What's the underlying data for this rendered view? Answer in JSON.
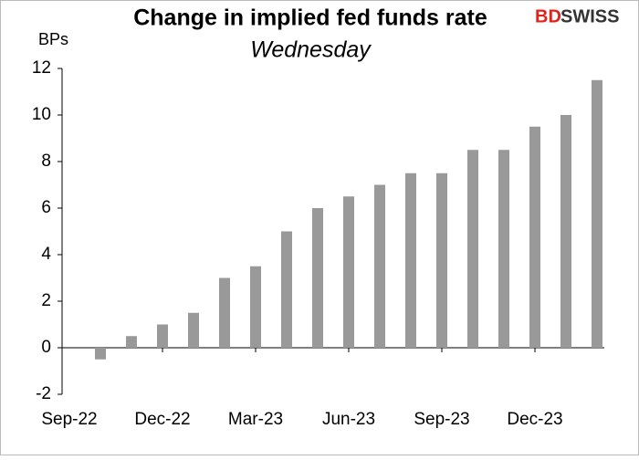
{
  "chart_data": {
    "type": "bar",
    "title": "Change in implied fed funds rate",
    "subtitle": "Wednesday",
    "y_label": "BPs",
    "brand": {
      "part1": "BD",
      "part2": "SWISS"
    },
    "categories": [
      "Sep-22",
      null,
      null,
      "Dec-22",
      null,
      null,
      "Mar-23",
      null,
      null,
      "Jun-23",
      null,
      null,
      "Sep-23",
      null,
      null,
      "Dec-23",
      null,
      null
    ],
    "values": [
      null,
      -0.5,
      0.5,
      1,
      1.5,
      3,
      3.5,
      5,
      6,
      6.5,
      7,
      7.5,
      7.5,
      8.5,
      8.5,
      9.5,
      10,
      11.5
    ],
    "color": "#999999",
    "ylim": [
      -2,
      12
    ],
    "yticks": [
      -2,
      0,
      2,
      4,
      6,
      8,
      10,
      12
    ],
    "grid": false
  }
}
